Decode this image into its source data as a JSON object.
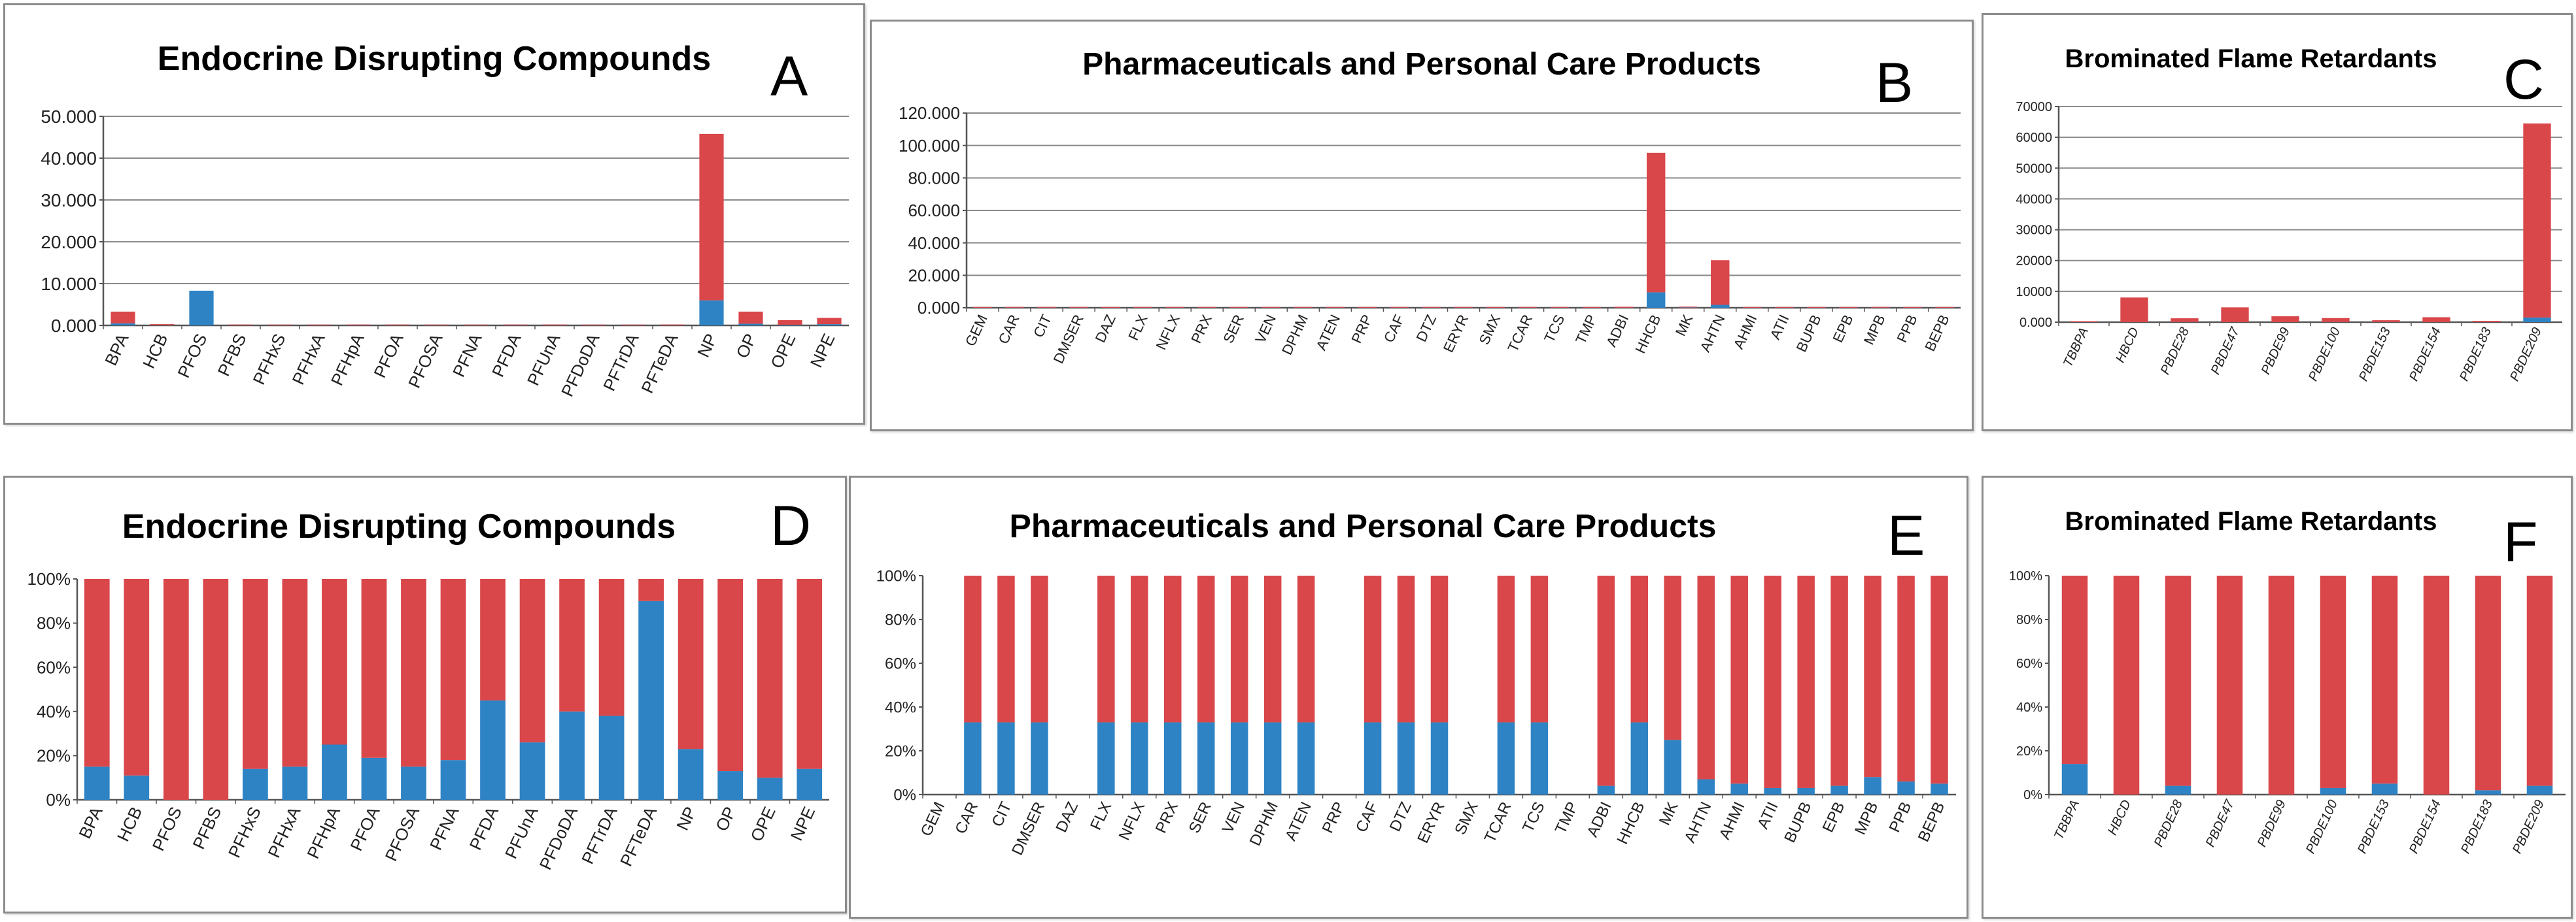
{
  "colors": {
    "top": "#d9474a",
    "bottom": "#2e83c4",
    "grid": "#8a8a8a"
  },
  "chart_data": [
    {
      "id": "A",
      "letter": "A",
      "type": "bar",
      "stacked": true,
      "title": "Endocrine Disrupting Compounds",
      "categories": [
        "BPA",
        "HCB",
        "PFOS",
        "PFBS",
        "PFHxS",
        "PFHxA",
        "PFHpA",
        "PFOA",
        "PFOSA",
        "PFNA",
        "PFDA",
        "PFUnA",
        "PFDoDA",
        "PFTrDA",
        "PFTeDA",
        "NP",
        "OP",
        "OPE",
        "NPE"
      ],
      "series": [
        {
          "values": [
            500,
            50,
            8300,
            10,
            10,
            15,
            20,
            15,
            10,
            10,
            20,
            20,
            10,
            10,
            20,
            6000,
            400,
            150,
            300
          ]
        },
        {
          "values": [
            2800,
            250,
            0,
            200,
            100,
            150,
            150,
            200,
            150,
            100,
            150,
            200,
            100,
            100,
            200,
            39800,
            2900,
            1100,
            1500
          ]
        }
      ],
      "ylim": [
        0,
        50000
      ],
      "yticks": [
        "0.000",
        "10.000",
        "20.000",
        "30.000",
        "40.000",
        "50.000"
      ],
      "ytick_values": [
        0,
        10000,
        20000,
        30000,
        40000,
        50000
      ],
      "grid": true
    },
    {
      "id": "B",
      "letter": "B",
      "type": "bar",
      "stacked": true,
      "title": "Pharmaceuticals and Personal Care Products",
      "categories": [
        "GEM",
        "CAR",
        "CIT",
        "DMSER",
        "DAZ",
        "FLX",
        "NFLX",
        "PRX",
        "SER",
        "VEN",
        "DPHM",
        "ATEN",
        "PRP",
        "CAF",
        "DTZ",
        "ERYR",
        "SMX",
        "TCAR",
        "TCS",
        "TMP",
        "ADBI",
        "HHCB",
        "MK",
        "AHTN",
        "AHMI",
        "ATII",
        "BUPB",
        "EPB",
        "MPB",
        "PPB",
        "BEPB"
      ],
      "series": [
        {
          "values": [
            20,
            50,
            50,
            50,
            20,
            50,
            50,
            50,
            50,
            50,
            50,
            50,
            20,
            50,
            50,
            50,
            20,
            50,
            50,
            20,
            30,
            9500,
            200,
            1800,
            30,
            20,
            30,
            30,
            50,
            30,
            20
          ]
        },
        {
          "values": [
            50,
            100,
            100,
            100,
            50,
            100,
            100,
            100,
            100,
            100,
            100,
            100,
            50,
            100,
            100,
            100,
            50,
            100,
            100,
            50,
            600,
            86000,
            500,
            27500,
            300,
            150,
            300,
            300,
            500,
            300,
            200
          ]
        }
      ],
      "ylim": [
        0,
        120000
      ],
      "yticks": [
        "0.000",
        "20.000",
        "40.000",
        "60.000",
        "80.000",
        "100.000",
        "120.000"
      ],
      "ytick_values": [
        0,
        20000,
        40000,
        60000,
        80000,
        100000,
        120000
      ],
      "grid": true
    },
    {
      "id": "C",
      "letter": "C",
      "type": "bar",
      "stacked": true,
      "title": "Brominated Flame Retardants",
      "categories": [
        "TBBPA",
        "HBCD",
        "PBDE28",
        "PBDE47",
        "PBDE99",
        "PBDE100",
        "PBDE153",
        "PBDE154",
        "PBDE183",
        "PBDE209"
      ],
      "series": [
        {
          "values": [
            0,
            0,
            50,
            0,
            0,
            30,
            20,
            0,
            10,
            1500
          ]
        },
        {
          "values": [
            300,
            8000,
            1200,
            4800,
            1900,
            1300,
            600,
            1600,
            400,
            63000
          ]
        }
      ],
      "ylim": [
        0,
        70000
      ],
      "yticks": [
        "0.000",
        "10000",
        "20000",
        "30000",
        "40000",
        "50000",
        "60000",
        "70000"
      ],
      "ytick_values": [
        0,
        10000,
        20000,
        30000,
        40000,
        50000,
        60000,
        70000
      ],
      "italic_categories": true,
      "grid": true
    },
    {
      "id": "D",
      "letter": "D",
      "type": "bar",
      "stacked": true,
      "percent": true,
      "title": "Endocrine Disrupting Compounds",
      "categories": [
        "BPA",
        "HCB",
        "PFOS",
        "PFBS",
        "PFHxS",
        "PFHxA",
        "PFHpA",
        "PFOA",
        "PFOSA",
        "PFNA",
        "PFDA",
        "PFUnA",
        "PFDoDA",
        "PFTrDA",
        "PFTeDA",
        "NP",
        "OP",
        "OPE",
        "NPE"
      ],
      "series": [
        {
          "values": [
            15,
            11,
            0,
            0,
            14,
            15,
            25,
            19,
            15,
            18,
            45,
            26,
            40,
            38,
            90,
            23,
            13,
            10,
            14
          ]
        },
        {
          "values": [
            85,
            89,
            100,
            100,
            86,
            85,
            75,
            81,
            85,
            82,
            55,
            74,
            60,
            62,
            10,
            77,
            87,
            90,
            86
          ]
        }
      ],
      "ylim": [
        0,
        100
      ],
      "yticks": [
        "0%",
        "20%",
        "40%",
        "60%",
        "80%",
        "100%"
      ],
      "ytick_values": [
        0,
        20,
        40,
        60,
        80,
        100
      ],
      "grid": false
    },
    {
      "id": "E",
      "letter": "E",
      "type": "bar",
      "stacked": true,
      "percent": true,
      "title": "Pharmaceuticals and Personal Care Products",
      "categories": [
        "GEM",
        "CAR",
        "CIT",
        "DMSER",
        "DAZ",
        "FLX",
        "NFLX",
        "PRX",
        "SER",
        "VEN",
        "DPHM",
        "ATEN",
        "PRP",
        "CAF",
        "DTZ",
        "ERYR",
        "SMX",
        "TCAR",
        "TCS",
        "TMP",
        "ADBI",
        "HHCB",
        "MK",
        "AHTN",
        "AHMI",
        "ATII",
        "BUPB",
        "EPB",
        "MPB",
        "PPB",
        "BEPB"
      ],
      "series": [
        {
          "values": [
            0,
            33,
            33,
            33,
            0,
            33,
            33,
            33,
            33,
            33,
            33,
            33,
            0,
            33,
            33,
            33,
            0,
            33,
            33,
            0,
            4,
            33,
            25,
            7,
            5,
            3,
            3,
            4,
            8,
            6,
            5
          ]
        },
        {
          "values": [
            0,
            67,
            67,
            67,
            0,
            67,
            67,
            67,
            67,
            67,
            67,
            67,
            0,
            67,
            67,
            67,
            0,
            67,
            67,
            0,
            96,
            67,
            75,
            93,
            95,
            97,
            97,
            96,
            92,
            94,
            95
          ]
        }
      ],
      "ylim": [
        0,
        100
      ],
      "yticks": [
        "0%",
        "20%",
        "40%",
        "60%",
        "80%",
        "100%"
      ],
      "ytick_values": [
        0,
        20,
        40,
        60,
        80,
        100
      ],
      "grid": false
    },
    {
      "id": "F",
      "letter": "F",
      "type": "bar",
      "stacked": true,
      "percent": true,
      "title": "Brominated Flame Retardants",
      "categories": [
        "TBBPA",
        "HBCD",
        "PBDE28",
        "PBDE47",
        "PBDE99",
        "PBDE100",
        "PBDE153",
        "PBDE154",
        "PBDE183",
        "PBDE209"
      ],
      "series": [
        {
          "values": [
            14,
            0,
            4,
            0,
            0,
            3,
            5,
            0,
            2,
            4
          ]
        },
        {
          "values": [
            86,
            100,
            96,
            100,
            100,
            97,
            95,
            100,
            98,
            96
          ]
        }
      ],
      "ylim": [
        0,
        100
      ],
      "yticks": [
        "0%",
        "20%",
        "40%",
        "60%",
        "80%",
        "100%"
      ],
      "ytick_values": [
        0,
        20,
        40,
        60,
        80,
        100
      ],
      "italic_categories": true,
      "grid": false
    }
  ]
}
